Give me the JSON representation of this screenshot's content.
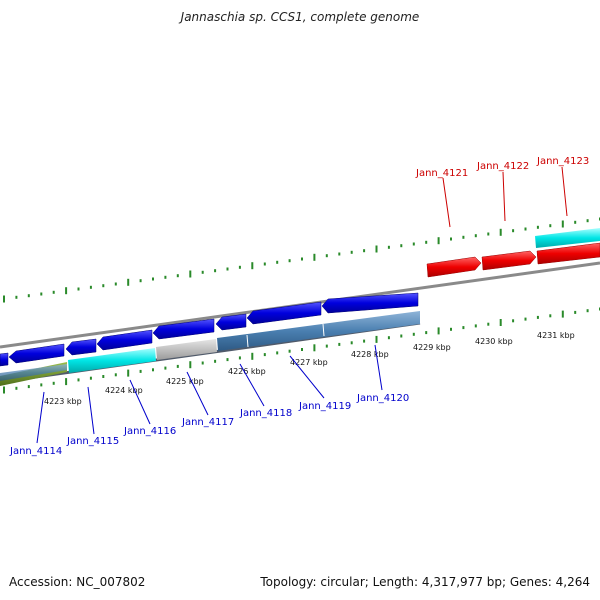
{
  "title": "Jannaschia sp. CCS1, complete genome",
  "footer": {
    "accession": "Accession: NC_007802",
    "summary": "Topology: circular; Length: 4,317,977 bp; Genes: 4,264"
  },
  "colors": {
    "forward_label": "#cc0000",
    "reverse_label": "#0000cc",
    "tick": "#2a8a2a",
    "backbone": "#8a8a8a"
  },
  "kbp_ticks": [
    "4223 kbp",
    "4224 kbp",
    "4225 kbp",
    "4226 kbp",
    "4227 kbp",
    "4228 kbp",
    "4229 kbp",
    "4230 kbp",
    "4231 kbp"
  ],
  "forward_genes": [
    {
      "label": "Jann_4121",
      "color": "#ff0000"
    },
    {
      "label": "Jann_4122",
      "color": "#ff0000"
    },
    {
      "label": "Jann_4123",
      "color": "#ff0000"
    }
  ],
  "reverse_genes": [
    {
      "label": "Jann_4114",
      "color": "#0000ee"
    },
    {
      "label": "Jann_4115",
      "color": "#0000ee"
    },
    {
      "label": "Jann_4116",
      "color": "#0000ee"
    },
    {
      "label": "Jann_4117",
      "color": "#0000ee"
    },
    {
      "label": "Jann_4118",
      "color": "#0000ee"
    },
    {
      "label": "Jann_4119",
      "color": "#0000ee"
    },
    {
      "label": "Jann_4120",
      "color": "#0000ee"
    }
  ]
}
